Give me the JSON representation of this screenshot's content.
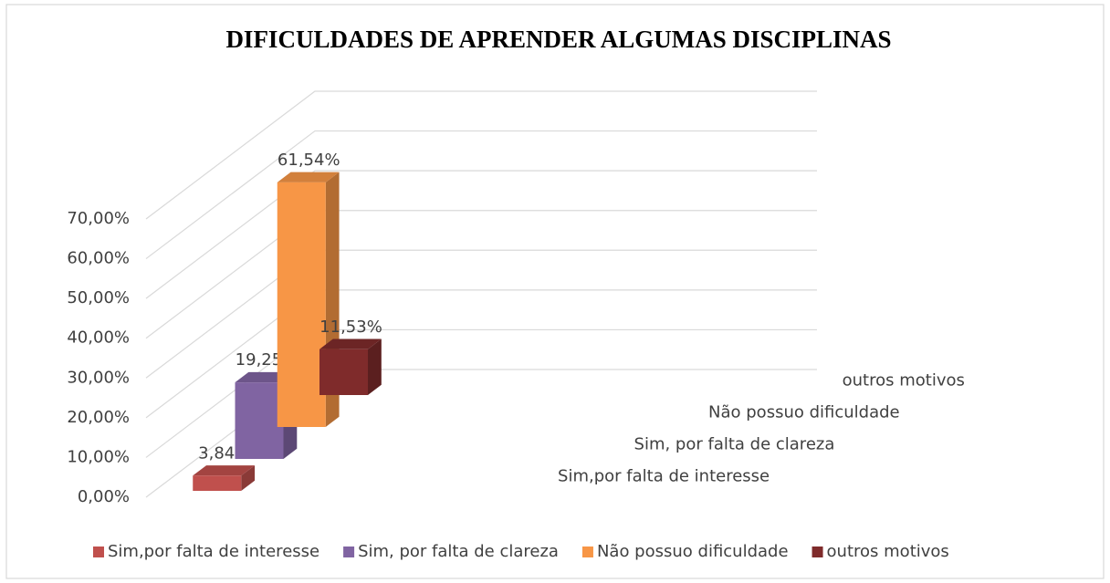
{
  "chart_data": {
    "type": "bar3d",
    "title": "DIFICULDADES DE APRENDER ALGUMAS DISCIPLINAS",
    "series": [
      {
        "name": "Sim,por falta de interesse",
        "color": "#c0504d",
        "values": [
          3.84
        ],
        "value_labels": [
          "3,84%"
        ]
      },
      {
        "name": "Sim, por falta de clareza",
        "color": "#8064a2",
        "values": [
          19.25
        ],
        "value_labels": [
          "19,25%"
        ]
      },
      {
        "name": "Não possuo dificuldade",
        "color": "#f79646",
        "values": [
          61.54
        ],
        "value_labels": [
          "61,54%"
        ]
      },
      {
        "name": "outros motivos",
        "color": "#7f2b2b",
        "values": [
          11.53
        ],
        "value_labels": [
          "11,53%"
        ]
      }
    ],
    "ylim": [
      0,
      70
    ],
    "yticks": [
      {
        "value": 0,
        "label": "0,00%"
      },
      {
        "value": 10,
        "label": "10,00%"
      },
      {
        "value": 20,
        "label": "20,00%"
      },
      {
        "value": 30,
        "label": "30,00%"
      },
      {
        "value": 40,
        "label": "40,00%"
      },
      {
        "value": 50,
        "label": "50,00%"
      },
      {
        "value": 60,
        "label": "60,00%"
      },
      {
        "value": 70,
        "label": "70,00%"
      }
    ],
    "grid": true,
    "legend": "bottom"
  }
}
